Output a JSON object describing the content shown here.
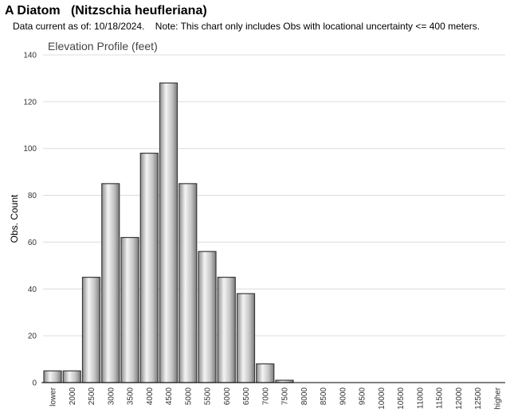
{
  "header": {
    "title": "A Diatom   (Nitzschia heufleriana)",
    "note": "Data current as of: 10/18/2024.    Note: This chart only includes Obs with locational uncertainty <= 400 meters."
  },
  "chart_data": {
    "type": "bar",
    "title": "Elevation Profile (feet)",
    "xlabel": "",
    "ylabel": "Obs. Count",
    "categories": [
      "lower",
      "2000",
      "2500",
      "3000",
      "3500",
      "4000",
      "4500",
      "5000",
      "5500",
      "6000",
      "6500",
      "7000",
      "7500",
      "8000",
      "8500",
      "9000",
      "9500",
      "10000",
      "10500",
      "11000",
      "11500",
      "12000",
      "12500",
      "higher"
    ],
    "values": [
      5,
      5,
      45,
      85,
      62,
      98,
      128,
      85,
      56,
      45,
      38,
      8,
      1,
      0,
      0,
      0,
      0,
      0,
      0,
      0,
      0,
      0,
      0,
      0
    ],
    "ylim": [
      0,
      140
    ],
    "yticks": [
      0,
      20,
      40,
      60,
      80,
      100,
      120,
      140
    ],
    "grid": true,
    "bar_color": "#b8b8b8"
  }
}
